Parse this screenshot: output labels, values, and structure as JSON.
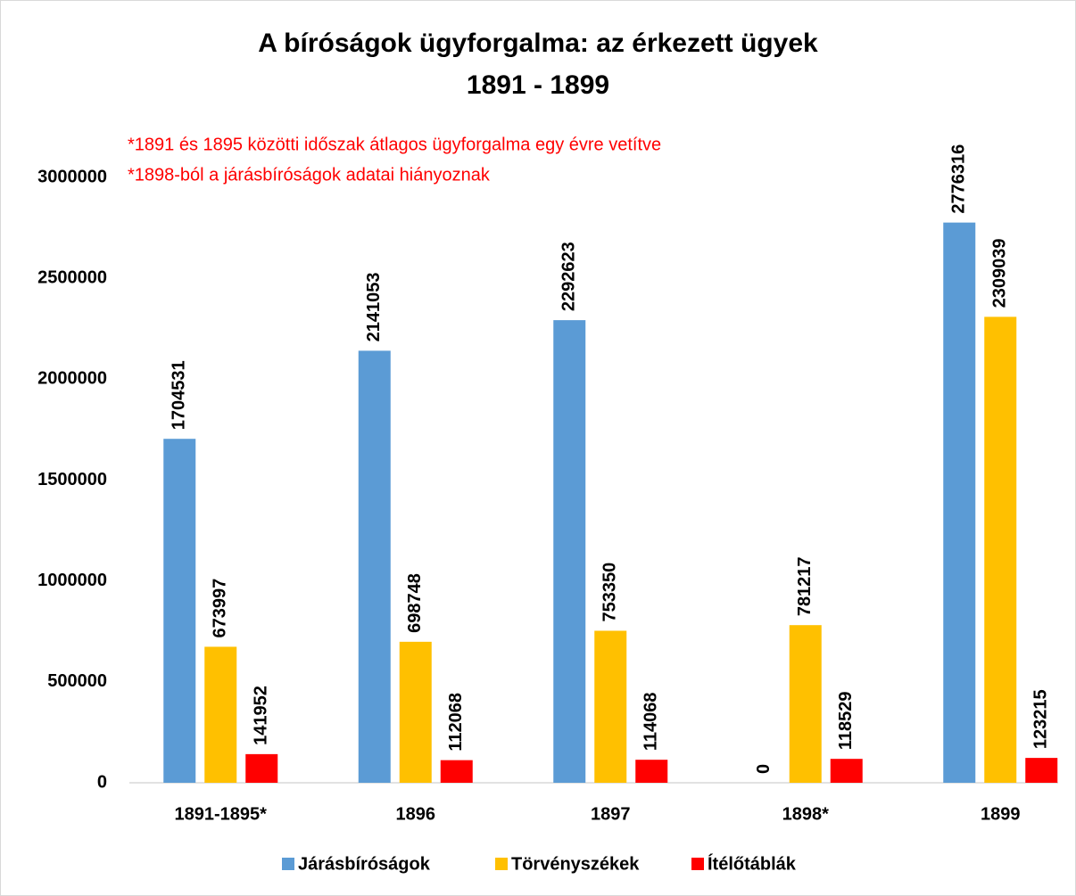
{
  "chart_data": {
    "type": "bar",
    "title": "A bíróságok ügyforgalma: az érkezett ügyek",
    "subtitle": "1891 - 1899",
    "annotations": [
      "*1891 és 1895 közötti időszak átlagos ügyforgalma egy évre vetítve",
      "*1898-ból a járásbíróságok adatai hiányoznak"
    ],
    "categories": [
      "1891-1895*",
      "1896",
      "1897",
      "1898*",
      "1899"
    ],
    "series": [
      {
        "name": "Járásbíróságok",
        "color": "#5b9bd5",
        "values": [
          1704531,
          2141053,
          2292623,
          0,
          2776316
        ]
      },
      {
        "name": "Törvényszékek",
        "color": "#ffc000",
        "values": [
          673997,
          698748,
          753350,
          781217,
          2309039
        ]
      },
      {
        "name": "Ítélőtáblák",
        "color": "#ff0000",
        "values": [
          141952,
          112068,
          114068,
          118529,
          123215
        ]
      }
    ],
    "ylim": [
      0,
      3000000
    ],
    "yticks": [
      0,
      500000,
      1000000,
      1500000,
      2000000,
      2500000,
      3000000
    ],
    "grid": false,
    "legend": "bottom"
  }
}
